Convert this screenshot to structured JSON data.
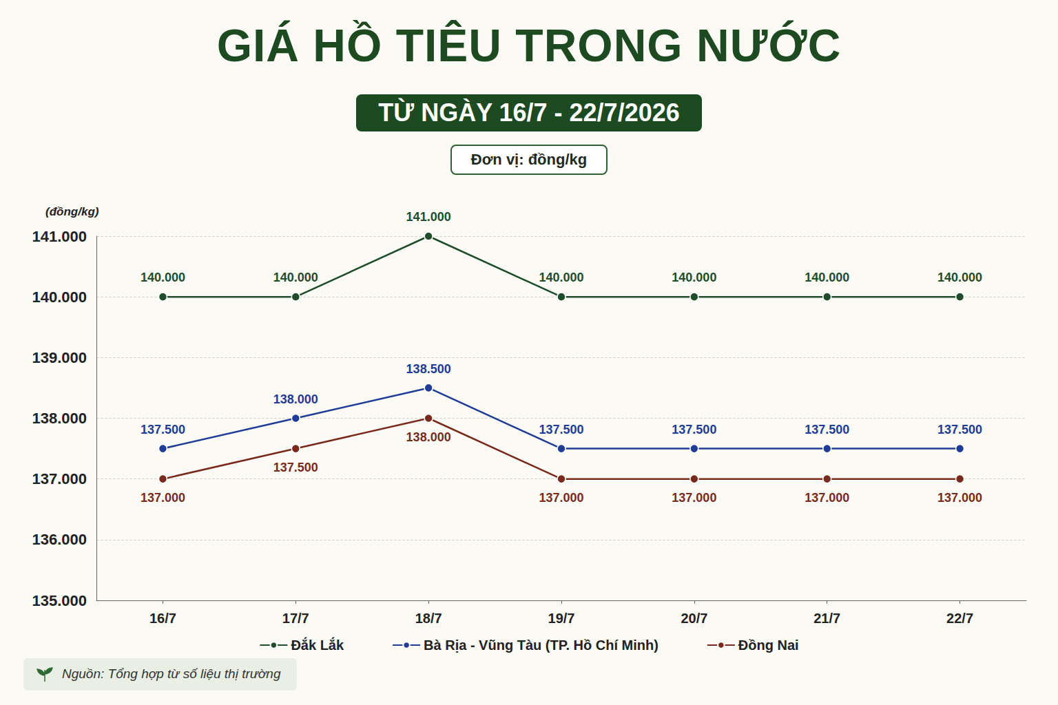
{
  "chart_data": {
    "type": "line",
    "title": "GIÁ HỒ TIÊU TRONG NƯỚC",
    "subtitle": "TỪ NGÀY 16/7 - 22/7/2026",
    "ylabel": "(đồng/kg)",
    "annotations": [
      "Đơn vị: đồng/kg",
      "Nguồn: Tổng hợp từ số liệu thị trường"
    ],
    "categories": [
      "16/7",
      "17/7",
      "18/7",
      "19/7",
      "20/7",
      "21/7",
      "22/7"
    ],
    "series": [
      {
        "name": "Đắk Lắk",
        "color": "#1f4d2b",
        "values": [
          140000,
          140000,
          141000,
          140000,
          140000,
          140000,
          140000
        ],
        "value_labels": [
          "140.000",
          "140.000",
          "141.000",
          "140.000",
          "140.000",
          "140.000",
          "140.000"
        ]
      },
      {
        "name": "Bà Rịa - Vũng Tàu (TP. Hồ Chí Minh)",
        "color": "#1f3c96",
        "values": [
          137500,
          138000,
          138500,
          137500,
          137500,
          137500,
          137500
        ],
        "value_labels": [
          "137.500",
          "138.000",
          "138.500",
          "137.500",
          "137.500",
          "137.500",
          "137.500"
        ]
      },
      {
        "name": "Đồng Nai",
        "color": "#7a2a1c",
        "values": [
          137000,
          137500,
          138000,
          137000,
          137000,
          137000,
          137000
        ],
        "value_labels": [
          "137.000",
          "137.500",
          "138.000",
          "137.000",
          "137.000",
          "137.000",
          "137.000"
        ]
      }
    ],
    "ylim": [
      135000,
      141000
    ],
    "yticks": [
      {
        "value": 135000,
        "label": "135.000"
      },
      {
        "value": 136000,
        "label": "136.000"
      },
      {
        "value": 137000,
        "label": "137.000"
      },
      {
        "value": 138000,
        "label": "138.000"
      },
      {
        "value": 139000,
        "label": "139.000"
      },
      {
        "value": 140000,
        "label": "140.000"
      },
      {
        "value": 141000,
        "label": "141.000"
      }
    ],
    "grid": true,
    "legend": "bottom",
    "marker": "circle",
    "line_style": "solid",
    "data_labels": true
  }
}
